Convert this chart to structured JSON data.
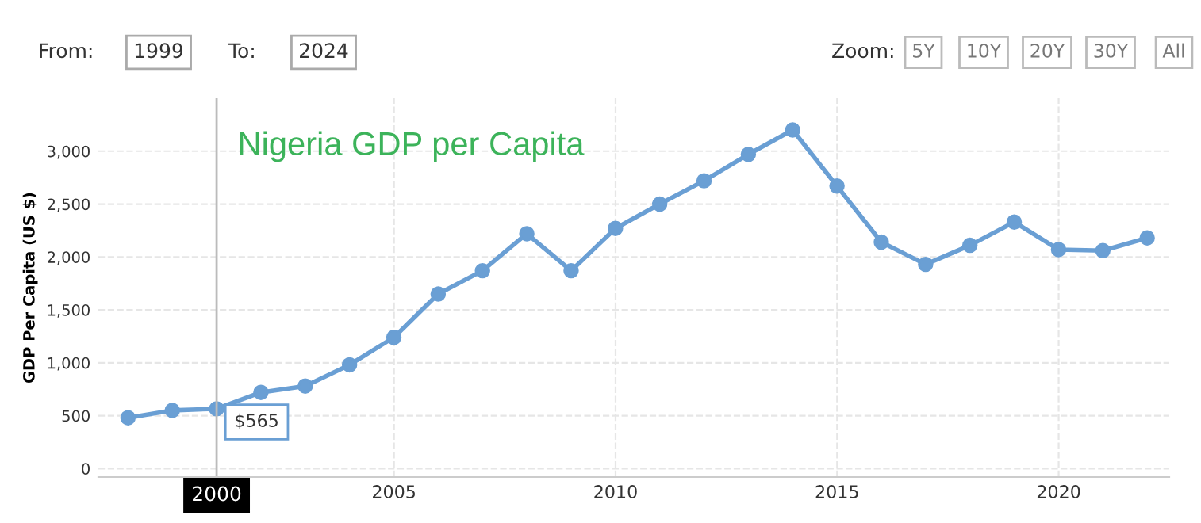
{
  "chart_data": {
    "type": "line",
    "title": "Nigeria GDP per Capita",
    "ylabel": "GDP Per Capita (US $)",
    "x": [
      "1998-12-31",
      "1999-12-31",
      "2000-12-31",
      "2001-12-31",
      "2002-12-31",
      "2003-12-31",
      "2004-12-31",
      "2005-12-31",
      "2006-12-31",
      "2007-12-31",
      "2008-12-31",
      "2009-12-31",
      "2010-12-31",
      "2011-12-31",
      "2012-12-31",
      "2013-12-31",
      "2014-12-31",
      "2015-12-31",
      "2016-12-31",
      "2017-12-31",
      "2018-12-31",
      "2019-12-31",
      "2020-12-31",
      "2021-12-31"
    ],
    "series": [
      {
        "color": "#6a9fd4",
        "values": [
          480,
          550,
          565,
          720,
          780,
          980,
          1240,
          1650,
          1870,
          2220,
          1870,
          2270,
          2500,
          2720,
          2970,
          3200,
          2670,
          2140,
          1930,
          2110,
          2330,
          2070,
          2060,
          2180
        ]
      }
    ],
    "xlim": [
      "1998-05-01",
      "2022-07-01"
    ],
    "xticks": [
      "2005",
      "2010",
      "2015",
      "2020"
    ],
    "ylim": [
      -80,
      3500
    ],
    "yticks": [
      {
        "value": 0,
        "label": "0"
      },
      {
        "value": 500,
        "label": "500"
      },
      {
        "value": 1000,
        "label": "1,000"
      },
      {
        "value": 1500,
        "label": "1,500"
      },
      {
        "value": 2000,
        "label": "2,000"
      },
      {
        "value": 2500,
        "label": "2,500"
      },
      {
        "value": 3000,
        "label": "3,000"
      }
    ],
    "grid": true,
    "marker": "circle",
    "line_style": "solid",
    "legend": false,
    "ref_lines": [
      {
        "axis": "x",
        "value": "2000-12-31",
        "label": "2000",
        "color": "#bbbbbb"
      }
    ],
    "annotations": [
      {
        "text": "$565",
        "x": "2000-12-31",
        "y": 565
      },
      "From:",
      "1999",
      "To:",
      "2024",
      "Zoom:",
      "5Y",
      "10Y",
      "20Y",
      "30Y",
      "All"
    ]
  }
}
